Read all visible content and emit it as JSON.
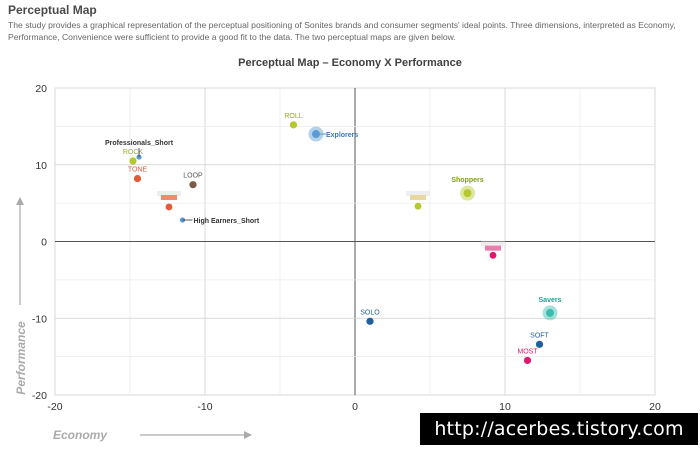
{
  "header": {
    "title": "Perceptual Map",
    "intro": "The study provides a graphical representation of the perceptual positioning of Sonites brands and consumer segments' ideal points. Three dimensions, interpreted as Economy, Performance, Convenience were sufficient to provide a good fit to the data. The two perceptual maps are given below."
  },
  "chart_data": {
    "type": "scatter",
    "title": "Perceptual Map – Economy X Performance",
    "xlabel": "Economy",
    "ylabel": "Performance",
    "xlim": [
      -20,
      20
    ],
    "ylim": [
      -20,
      20
    ],
    "xticks": [
      -20,
      -10,
      0,
      10,
      20
    ],
    "yticks": [
      -20,
      -10,
      0,
      10,
      20
    ],
    "grid": true,
    "brands": [
      {
        "label": "ROLL",
        "x": -4.1,
        "y": 15.2,
        "color": "#b5c92e",
        "label_color": "#9aae18"
      },
      {
        "label": "ROCK",
        "x": -14.8,
        "y": 10.5,
        "color": "#b5c92e",
        "label_color": "#9aae18"
      },
      {
        "label": "TONE",
        "x": -14.5,
        "y": 8.2,
        "color": "#e25a3a",
        "label_color": "#e25a3a"
      },
      {
        "label": "LOOP",
        "x": -10.8,
        "y": 7.4,
        "color": "#7d5a48",
        "label_color": "#555555"
      },
      {
        "label": "SOLO",
        "x": 1.0,
        "y": -10.4,
        "color": "#1f5f9c",
        "label_color": "#1f5f9c"
      },
      {
        "label": "SOFT",
        "x": 12.3,
        "y": -13.4,
        "color": "#1f5f9c",
        "label_color": "#1f5f9c"
      },
      {
        "label": "MOST",
        "x": 11.5,
        "y": -15.5,
        "color": "#e0196e",
        "label_color": "#e0196e"
      }
    ],
    "segments": [
      {
        "label": "Explorers",
        "x": -2.6,
        "y": 14.0,
        "color": "#5b9bd5",
        "label_color": "#3a78b5"
      },
      {
        "label": "Shoppers",
        "x": 7.5,
        "y": 6.3,
        "color": "#b5c92e",
        "label_color": "#7f9a16"
      },
      {
        "label": "Savers",
        "x": 13.0,
        "y": -9.3,
        "color": "#3bbcb0",
        "label_color": "#1ea398"
      },
      {
        "label": "Professionals_Short",
        "x": -14.4,
        "y": 11.0,
        "color": "#5b9bd5",
        "label_color": "#333333"
      },
      {
        "label": "High Earners_Short",
        "x": -11.5,
        "y": 2.8,
        "color": "#5b9bd5",
        "label_color": "#333333"
      }
    ],
    "unlabeled_points": [
      {
        "x": -12.4,
        "y": 4.5,
        "color": "#e25a3a"
      },
      {
        "x": 4.2,
        "y": 4.6,
        "color": "#b5c92e"
      },
      {
        "x": 9.2,
        "y": -1.8,
        "color": "#e0196e"
      }
    ],
    "small_markers": [
      {
        "x": -12.4,
        "y": 5.8,
        "color": "#f08a6a"
      },
      {
        "x": 4.2,
        "y": 5.8,
        "color": "#e8d8a0"
      },
      {
        "x": 9.2,
        "y": -0.8,
        "color": "#f07aae"
      }
    ]
  }
}
